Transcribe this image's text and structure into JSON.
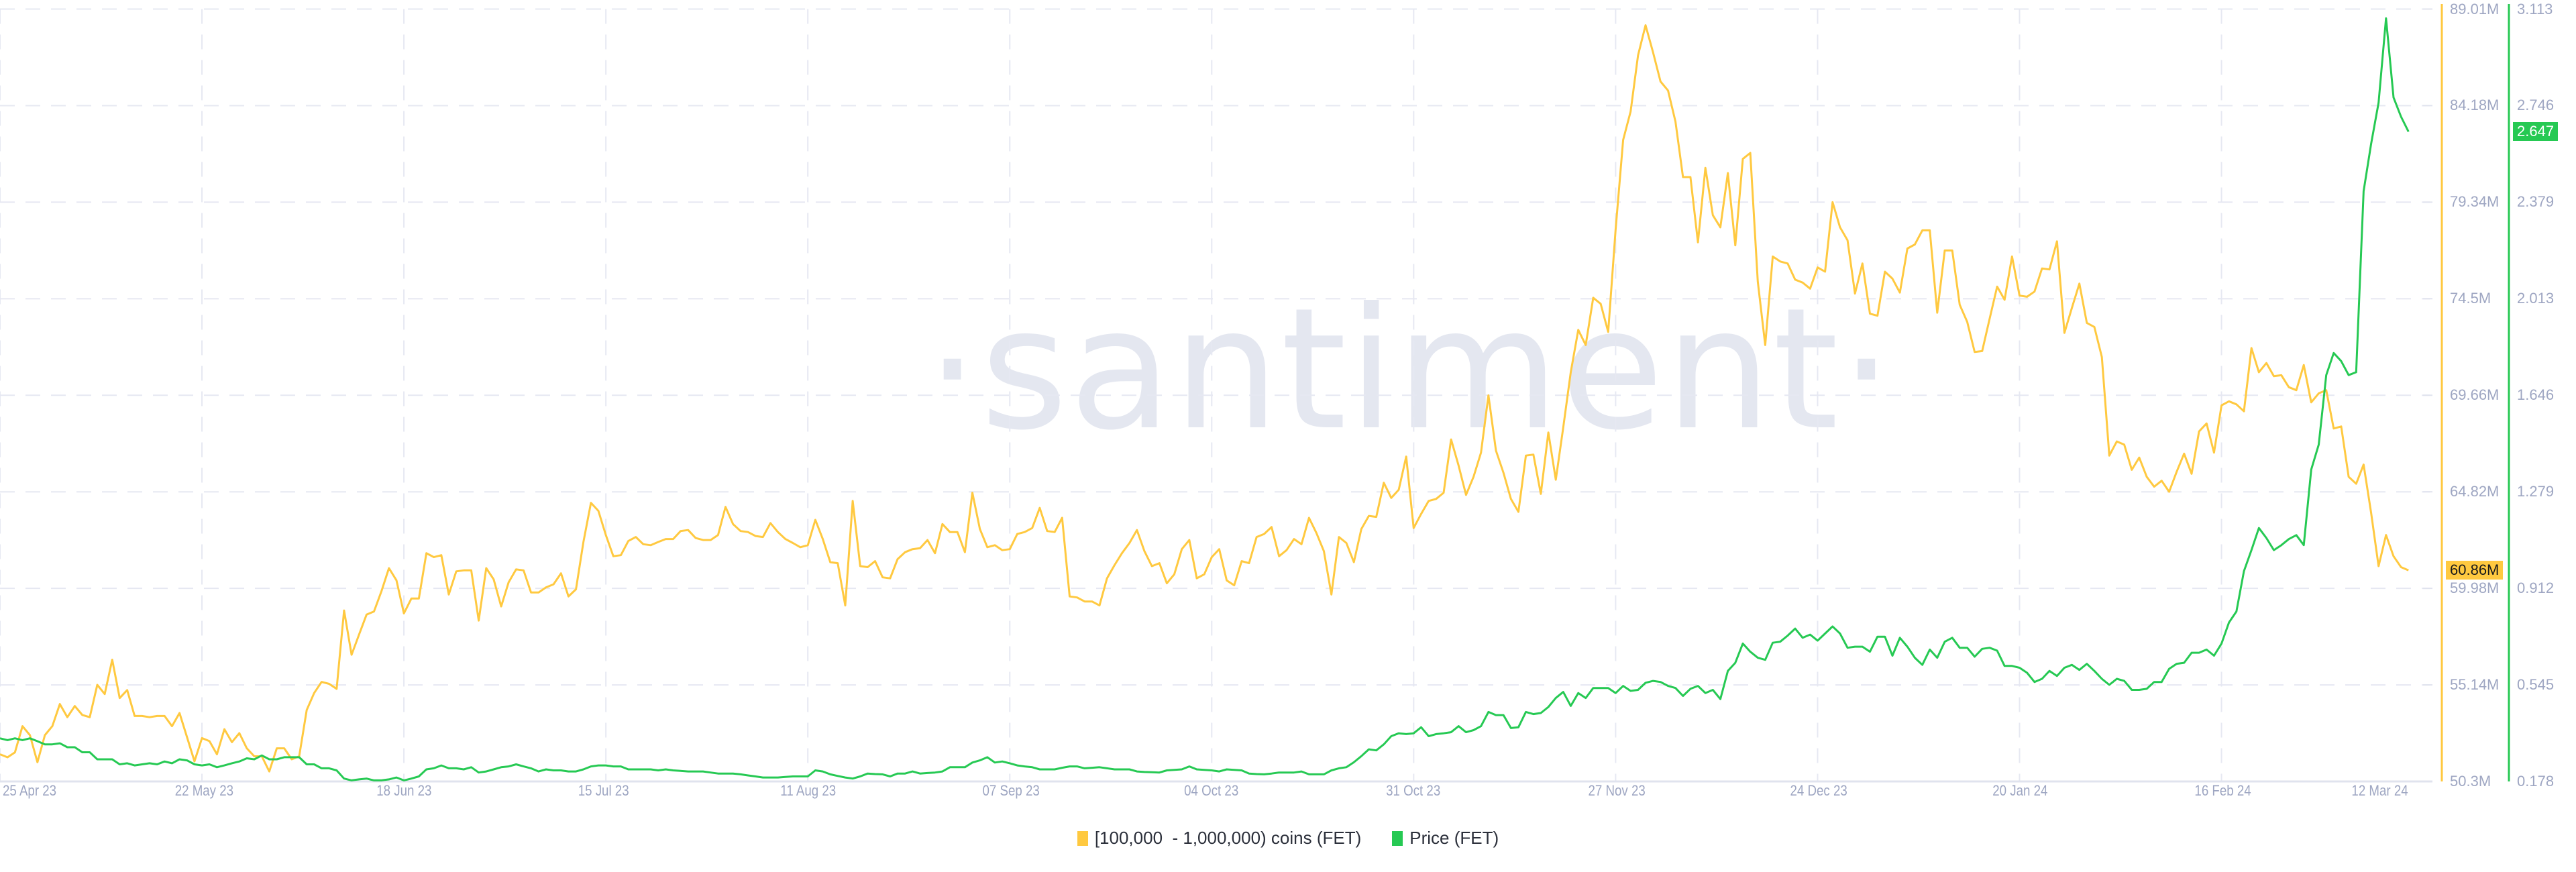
{
  "chart_data": {
    "type": "line",
    "watermark": "·santiment·",
    "xlim": [
      "2023-04-25",
      "2024-03-12"
    ],
    "x_interval": "1 day",
    "x_ticks": [
      {
        "label": "25 Apr 23",
        "date": "2023-04-25"
      },
      {
        "label": "22 May 23",
        "date": "2023-05-22"
      },
      {
        "label": "18 Jun 23",
        "date": "2023-06-18"
      },
      {
        "label": "15 Jul 23",
        "date": "2023-07-15"
      },
      {
        "label": "11 Aug 23",
        "date": "2023-08-11"
      },
      {
        "label": "07 Sep 23",
        "date": "2023-09-07"
      },
      {
        "label": "04 Oct 23",
        "date": "2023-10-04"
      },
      {
        "label": "31 Oct 23",
        "date": "2023-10-31"
      },
      {
        "label": "27 Nov 23",
        "date": "2023-11-27"
      },
      {
        "label": "24 Dec 23",
        "date": "2023-12-24"
      },
      {
        "label": "20 Jan 24",
        "date": "2024-01-20"
      },
      {
        "label": "16 Feb 24",
        "date": "2024-02-16"
      },
      {
        "label": "12 Mar 24",
        "date": "2024-03-12"
      }
    ],
    "grid": true,
    "legend_position": "bottom-center",
    "axes": {
      "left_of_pair": {
        "ylim": [
          50.3,
          89.01
        ],
        "ticks": [
          "89.01M",
          "84.18M",
          "79.34M",
          "74.5M",
          "69.66M",
          "64.82M",
          "59.98M",
          "55.14M",
          "50.3M"
        ],
        "color": "#ffc940"
      },
      "right_of_pair": {
        "ylim": [
          0.178,
          3.113
        ],
        "ticks": [
          "3.113",
          "2.746",
          "2.379",
          "2.013",
          "1.646",
          "1.279",
          "0.912",
          "0.545",
          "0.178"
        ],
        "color": "#26c953"
      }
    },
    "series": [
      {
        "name": "[100,000  - 1,000,000) coins (FET)",
        "unit": "M",
        "color": "#ffc940",
        "last_value_label": "60.86M",
        "values": [
          51.66,
          51.51,
          51.76,
          53.07,
          52.62,
          51.26,
          52.62,
          53.07,
          54.18,
          53.52,
          54.08,
          53.63,
          53.52,
          55.14,
          54.68,
          56.4,
          54.48,
          54.88,
          53.58,
          53.58,
          53.52,
          53.58,
          53.58,
          53.07,
          53.73,
          52.52,
          51.31,
          52.47,
          52.32,
          51.66,
          52.92,
          52.27,
          52.72,
          51.96,
          51.56,
          51.56,
          50.8,
          51.96,
          51.96,
          51.41,
          51.56,
          53.88,
          54.73,
          55.29,
          55.19,
          54.94,
          58.87,
          56.65,
          57.66,
          58.66,
          58.82,
          59.83,
          60.99,
          60.38,
          58.72,
          59.47,
          59.47,
          61.74,
          61.54,
          61.64,
          59.67,
          60.83,
          60.88,
          60.88,
          58.36,
          60.99,
          60.43,
          59.07,
          60.28,
          60.93,
          60.88,
          59.77,
          59.77,
          60.03,
          60.18,
          60.73,
          59.57,
          59.93,
          62.3,
          64.26,
          63.86,
          62.65,
          61.59,
          61.64,
          62.35,
          62.55,
          62.19,
          62.14,
          62.3,
          62.45,
          62.45,
          62.85,
          62.9,
          62.5,
          62.4,
          62.4,
          62.65,
          64.06,
          63.2,
          62.85,
          62.8,
          62.6,
          62.55,
          63.25,
          62.8,
          62.45,
          62.25,
          62.04,
          62.14,
          63.41,
          62.45,
          61.29,
          61.24,
          59.12,
          64.36,
          61.09,
          61.04,
          61.34,
          60.53,
          60.48,
          61.44,
          61.79,
          61.94,
          61.99,
          62.4,
          61.74,
          63.2,
          62.8,
          62.8,
          61.79,
          64.77,
          62.95,
          62.04,
          62.14,
          61.89,
          61.94,
          62.7,
          62.8,
          63.0,
          64.01,
          62.85,
          62.8,
          63.51,
          59.57,
          59.52,
          59.32,
          59.32,
          59.12,
          60.48,
          61.14,
          61.74,
          62.25,
          62.9,
          61.84,
          61.09,
          61.24,
          60.23,
          60.68,
          61.94,
          62.4,
          60.48,
          60.68,
          61.54,
          61.94,
          60.38,
          60.13,
          61.34,
          61.24,
          62.55,
          62.7,
          63.05,
          61.59,
          61.89,
          62.45,
          62.19,
          63.51,
          62.75,
          61.84,
          59.67,
          62.55,
          62.25,
          61.29,
          62.95,
          63.61,
          63.56,
          65.27,
          64.51,
          64.92,
          66.58,
          63.0,
          63.71,
          64.36,
          64.46,
          64.77,
          67.44,
          66.13,
          64.66,
          65.57,
          66.78,
          69.65,
          66.88,
          65.77,
          64.46,
          63.81,
          66.63,
          66.68,
          64.71,
          67.79,
          65.42,
          68.04,
          70.81,
          72.93,
          72.17,
          74.54,
          74.24,
          72.83,
          77.97,
          82.45,
          83.87,
          86.69,
          88.2,
          86.84,
          85.38,
          84.93,
          83.37,
          80.59,
          80.59,
          77.32,
          81.05,
          78.68,
          78.07,
          80.79,
          77.17,
          81.5,
          81.8,
          75.35,
          72.17,
          76.61,
          76.36,
          76.26,
          75.45,
          75.3,
          75.0,
          76.06,
          75.85,
          79.33,
          78.07,
          77.42,
          74.75,
          76.26,
          73.74,
          73.64,
          75.85,
          75.5,
          74.8,
          77.01,
          77.21,
          77.92,
          77.92,
          73.79,
          76.91,
          76.91,
          74.19,
          73.33,
          71.82,
          71.87,
          73.49,
          75.1,
          74.44,
          76.61,
          74.65,
          74.59,
          74.85,
          76.01,
          75.96,
          77.37,
          72.78,
          74.04,
          75.25,
          73.28,
          73.08,
          71.57,
          66.63,
          67.34,
          67.18,
          65.92,
          66.53,
          65.57,
          65.07,
          65.37,
          64.82,
          65.82,
          66.73,
          65.72,
          67.84,
          68.24,
          66.78,
          69.15,
          69.35,
          69.2,
          68.85,
          72.02,
          70.81,
          71.27,
          70.61,
          70.66,
          70.06,
          69.91,
          71.17,
          69.3,
          69.75,
          69.91,
          67.99,
          68.09,
          65.57,
          65.22,
          66.18,
          63.76,
          61.09,
          62.65,
          61.59,
          61.04,
          60.88
        ]
      },
      {
        "name": "Price (FET)",
        "color": "#26c953",
        "last_value_label": "2.647",
        "values": [
          0.342,
          0.335,
          0.342,
          0.335,
          0.342,
          0.331,
          0.319,
          0.319,
          0.323,
          0.308,
          0.308,
          0.289,
          0.289,
          0.262,
          0.262,
          0.262,
          0.243,
          0.247,
          0.239,
          0.243,
          0.247,
          0.243,
          0.254,
          0.247,
          0.262,
          0.258,
          0.243,
          0.239,
          0.243,
          0.232,
          0.239,
          0.247,
          0.254,
          0.266,
          0.262,
          0.277,
          0.262,
          0.262,
          0.27,
          0.27,
          0.27,
          0.243,
          0.243,
          0.228,
          0.228,
          0.22,
          0.189,
          0.182,
          0.186,
          0.189,
          0.182,
          0.182,
          0.186,
          0.193,
          0.182,
          0.189,
          0.197,
          0.224,
          0.228,
          0.239,
          0.228,
          0.228,
          0.224,
          0.232,
          0.212,
          0.216,
          0.224,
          0.232,
          0.235,
          0.243,
          0.235,
          0.228,
          0.216,
          0.224,
          0.22,
          0.22,
          0.216,
          0.216,
          0.224,
          0.235,
          0.239,
          0.239,
          0.235,
          0.235,
          0.224,
          0.224,
          0.224,
          0.224,
          0.22,
          0.224,
          0.22,
          0.218,
          0.216,
          0.216,
          0.216,
          0.212,
          0.208,
          0.208,
          0.208,
          0.205,
          0.201,
          0.197,
          0.193,
          0.193,
          0.193,
          0.195,
          0.197,
          0.197,
          0.197,
          0.22,
          0.216,
          0.205,
          0.199,
          0.193,
          0.189,
          0.197,
          0.208,
          0.206,
          0.205,
          0.197,
          0.208,
          0.208,
          0.216,
          0.208,
          0.21,
          0.212,
          0.216,
          0.232,
          0.232,
          0.232,
          0.25,
          0.258,
          0.27,
          0.25,
          0.254,
          0.247,
          0.239,
          0.235,
          0.232,
          0.224,
          0.224,
          0.224,
          0.23,
          0.235,
          0.235,
          0.228,
          0.23,
          0.232,
          0.228,
          0.224,
          0.224,
          0.224,
          0.216,
          0.214,
          0.213,
          0.212,
          0.22,
          0.222,
          0.224,
          0.235,
          0.224,
          0.222,
          0.22,
          0.216,
          0.224,
          0.222,
          0.22,
          0.208,
          0.206,
          0.205,
          0.208,
          0.212,
          0.212,
          0.212,
          0.216,
          0.205,
          0.205,
          0.205,
          0.22,
          0.228,
          0.232,
          0.251,
          0.274,
          0.3,
          0.296,
          0.319,
          0.35,
          0.361,
          0.358,
          0.361,
          0.384,
          0.35,
          0.358,
          0.361,
          0.365,
          0.388,
          0.365,
          0.373,
          0.388,
          0.442,
          0.43,
          0.43,
          0.381,
          0.384,
          0.442,
          0.434,
          0.438,
          0.461,
          0.495,
          0.518,
          0.465,
          0.514,
          0.495,
          0.533,
          0.533,
          0.533,
          0.514,
          0.541,
          0.522,
          0.526,
          0.553,
          0.56,
          0.556,
          0.541,
          0.533,
          0.503,
          0.53,
          0.541,
          0.514,
          0.526,
          0.491,
          0.598,
          0.629,
          0.702,
          0.671,
          0.648,
          0.64,
          0.705,
          0.709,
          0.732,
          0.759,
          0.724,
          0.736,
          0.713,
          0.74,
          0.767,
          0.74,
          0.686,
          0.69,
          0.69,
          0.671,
          0.728,
          0.728,
          0.656,
          0.724,
          0.69,
          0.648,
          0.621,
          0.679,
          0.648,
          0.709,
          0.724,
          0.686,
          0.686,
          0.652,
          0.682,
          0.686,
          0.675,
          0.617,
          0.617,
          0.61,
          0.591,
          0.556,
          0.568,
          0.598,
          0.579,
          0.61,
          0.621,
          0.602,
          0.625,
          0.598,
          0.568,
          0.545,
          0.568,
          0.56,
          0.526,
          0.526,
          0.53,
          0.556,
          0.556,
          0.606,
          0.625,
          0.629,
          0.667,
          0.667,
          0.679,
          0.656,
          0.702,
          0.782,
          0.824,
          0.977,
          1.057,
          1.141,
          1.103,
          1.057,
          1.076,
          1.099,
          1.114,
          1.076,
          1.363,
          1.458,
          1.722,
          1.806,
          1.775,
          1.722,
          1.733,
          2.421,
          2.601,
          2.757,
          3.078,
          2.777,
          2.704,
          2.647
        ]
      }
    ]
  }
}
